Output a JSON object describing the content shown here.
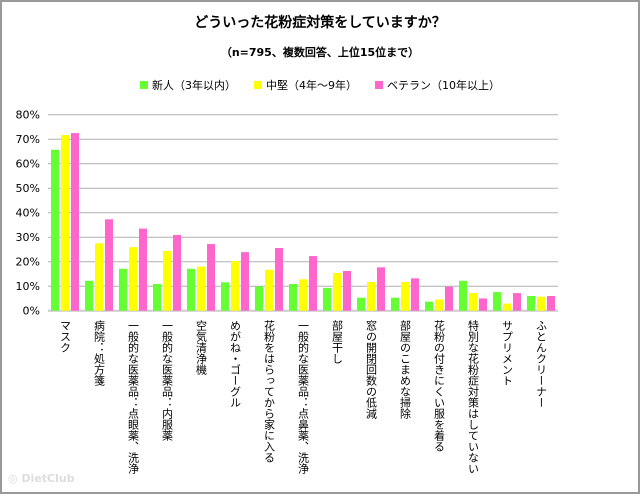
{
  "chart_data": {
    "type": "bar",
    "title": "どういった花粉症対策をしていますか？",
    "subtitle": "（n=795、複数回答、上位15位まで）",
    "ylim": [
      0,
      80
    ],
    "yticks": [
      "0%",
      "10%",
      "20%",
      "30%",
      "40%",
      "50%",
      "60%",
      "70%",
      "80%"
    ],
    "grid": true,
    "legend_position": "top",
    "categories": [
      "マスク",
      "病院：処方箋",
      "一般的な医薬品：点眼薬、洗浄",
      "一般的な医薬品：内服薬",
      "空気清浄機",
      "めがね・ゴーグル",
      "花粉をはらってから家に入る",
      "一般的な医薬品：点鼻薬、洗浄",
      "部屋干し",
      "窓の開閉回数の低減",
      "部屋のこまめな掃除",
      "花粉の付きにくい服を着る",
      "特別な花粉症対策はしていない",
      "サプリメント",
      "ふとんクリーナー"
    ],
    "series": [
      {
        "name": "新人（3年以内）",
        "color": "#66ff33",
        "values": [
          65.7,
          12.2,
          17.1,
          10.9,
          17.1,
          11.6,
          9.9,
          10.9,
          9.3,
          5.3,
          5.3,
          3.7,
          12.2,
          7.6,
          6.0
        ]
      },
      {
        "name": "中堅（4年～9年）",
        "color": "#ffff00",
        "values": [
          71.7,
          27.5,
          25.9,
          24.4,
          18.0,
          20.3,
          16.7,
          12.8,
          15.4,
          11.7,
          11.7,
          4.6,
          7.2,
          2.9,
          5.7
        ]
      },
      {
        "name": "ベテラン（10年以上）",
        "color": "#ff66cc",
        "values": [
          72.5,
          37.3,
          33.5,
          30.9,
          27.2,
          23.9,
          25.6,
          22.3,
          16.2,
          17.7,
          13.2,
          9.8,
          5.0,
          7.2,
          6.0
        ]
      }
    ]
  },
  "watermark": "DietClub"
}
